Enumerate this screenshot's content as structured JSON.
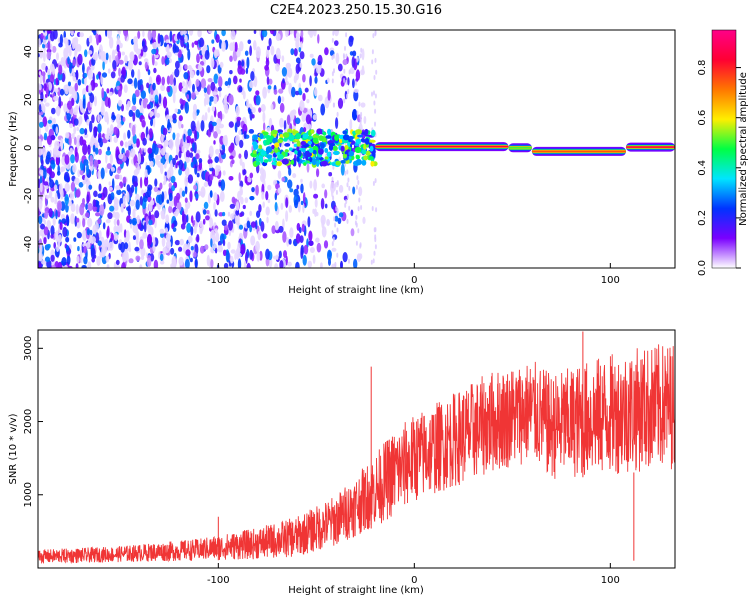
{
  "figure_title": "C2E4.2023.250.15.30.G16",
  "chart_data": [
    {
      "type": "heatmap",
      "xlabel": "Height of straight line (km)",
      "ylabel": "Frequency (Hz)",
      "xlim": [
        -192,
        133
      ],
      "ylim": [
        -50,
        49
      ],
      "x_ticks": [
        -100,
        0,
        100
      ],
      "y_ticks": [
        -40,
        -20,
        0,
        20,
        40
      ],
      "colorbar": {
        "label": "Normalized spectral amplitude",
        "range": [
          0,
          0.95
        ],
        "ticks": [
          0.0,
          0.2,
          0.4,
          0.6,
          0.8
        ],
        "colors": [
          "#ffffff",
          "#7a00ff",
          "#0033ff",
          "#00e5ff",
          "#00ff44",
          "#ffee00",
          "#ff7700",
          "#ff0033",
          "#ff0088"
        ]
      },
      "ridge_frequency_segments": [
        {
          "x_start": -20,
          "x_end": 48,
          "freq": 0.5,
          "amplitude": 0.85
        },
        {
          "x_start": 48,
          "x_end": 60,
          "freq": 0.0,
          "amplitude": 0.5
        },
        {
          "x_start": 60,
          "x_end": 108,
          "freq": -1.5,
          "amplitude": 0.75
        },
        {
          "x_start": 108,
          "x_end": 133,
          "freq": 0.3,
          "amplitude": 0.85
        }
      ],
      "noise_region": {
        "x_start": -192,
        "x_end": -35,
        "amplitude_range": [
          0.05,
          0.3
        ]
      }
    },
    {
      "type": "line",
      "color": "#f03535",
      "xlabel": "Height of straight line (km)",
      "ylabel": "SNR (10 * v/v)",
      "xlim": [
        -192,
        133
      ],
      "ylim": [
        0,
        3250
      ],
      "x_ticks": [
        -100,
        0,
        100
      ],
      "y_ticks": [
        1000,
        2000,
        3000
      ],
      "envelope": {
        "x": [
          -192,
          -150,
          -110,
          -80,
          -60,
          -40,
          -25,
          -10,
          0,
          20,
          40,
          60,
          70,
          90,
          110,
          133
        ],
        "y_low": [
          60,
          80,
          100,
          120,
          150,
          300,
          500,
          700,
          900,
          1100,
          1300,
          1450,
          1200,
          1250,
          1300,
          1350
        ],
        "y_high": [
          250,
          300,
          400,
          550,
          700,
          1000,
          1400,
          1900,
          2100,
          2400,
          2700,
          2850,
          2650,
          2850,
          3000,
          3100
        ]
      },
      "spikes": [
        {
          "x": -22,
          "y": 2750
        },
        {
          "x": -100,
          "y": 700
        },
        {
          "x": 86,
          "y": 3230
        },
        {
          "x": 112,
          "y": 100
        }
      ]
    }
  ]
}
